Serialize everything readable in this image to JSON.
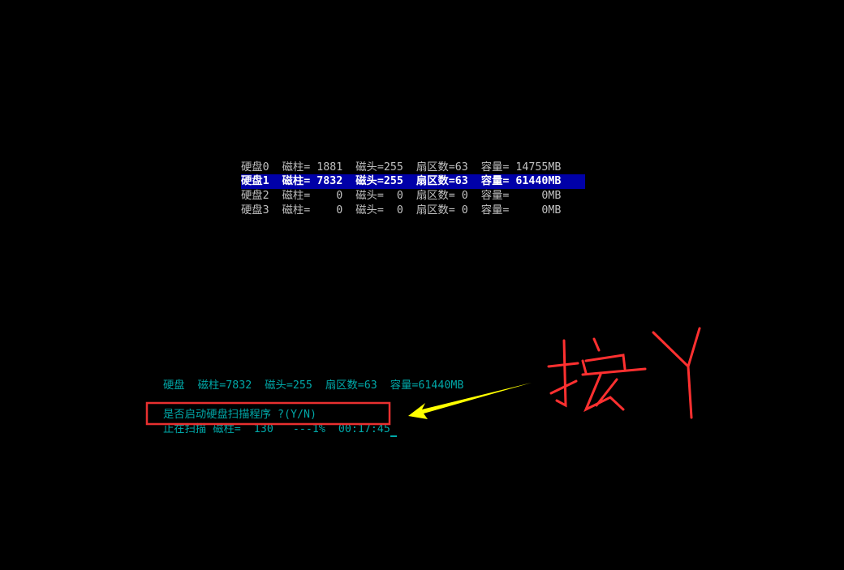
{
  "disks": [
    {
      "label": "硬盘0  磁柱= 1881  磁头=255  扇区数=63  容量= 14755MB",
      "selected": false
    },
    {
      "label": "硬盘1  磁柱= 7832  磁头=255  扇区数=63  容量= 61440MB",
      "selected": true
    },
    {
      "label": "硬盘2  磁柱=    0  磁头=  0  扇区数= 0  容量=     0MB",
      "selected": false
    },
    {
      "label": "硬盘3  磁柱=    0  磁头=  0  扇区数= 0  容量=     0MB",
      "selected": false
    }
  ],
  "summary": "硬盘  磁柱=7832  磁头=255  扇区数=63  容量=61440MB",
  "prompt": "是否启动硬盘扫描程序 ?(Y/N)",
  "status": "止在扫描 磁柱=  130   ---1%  00:17:45",
  "annotation": {
    "text": "按Y",
    "color": "#ff3030",
    "arrow_color": "#ffff00",
    "box_color": "#e83030"
  },
  "colors": {
    "highlight": "#0000a8",
    "text": "#c0c0c0",
    "cyan": "#00a8a8"
  }
}
